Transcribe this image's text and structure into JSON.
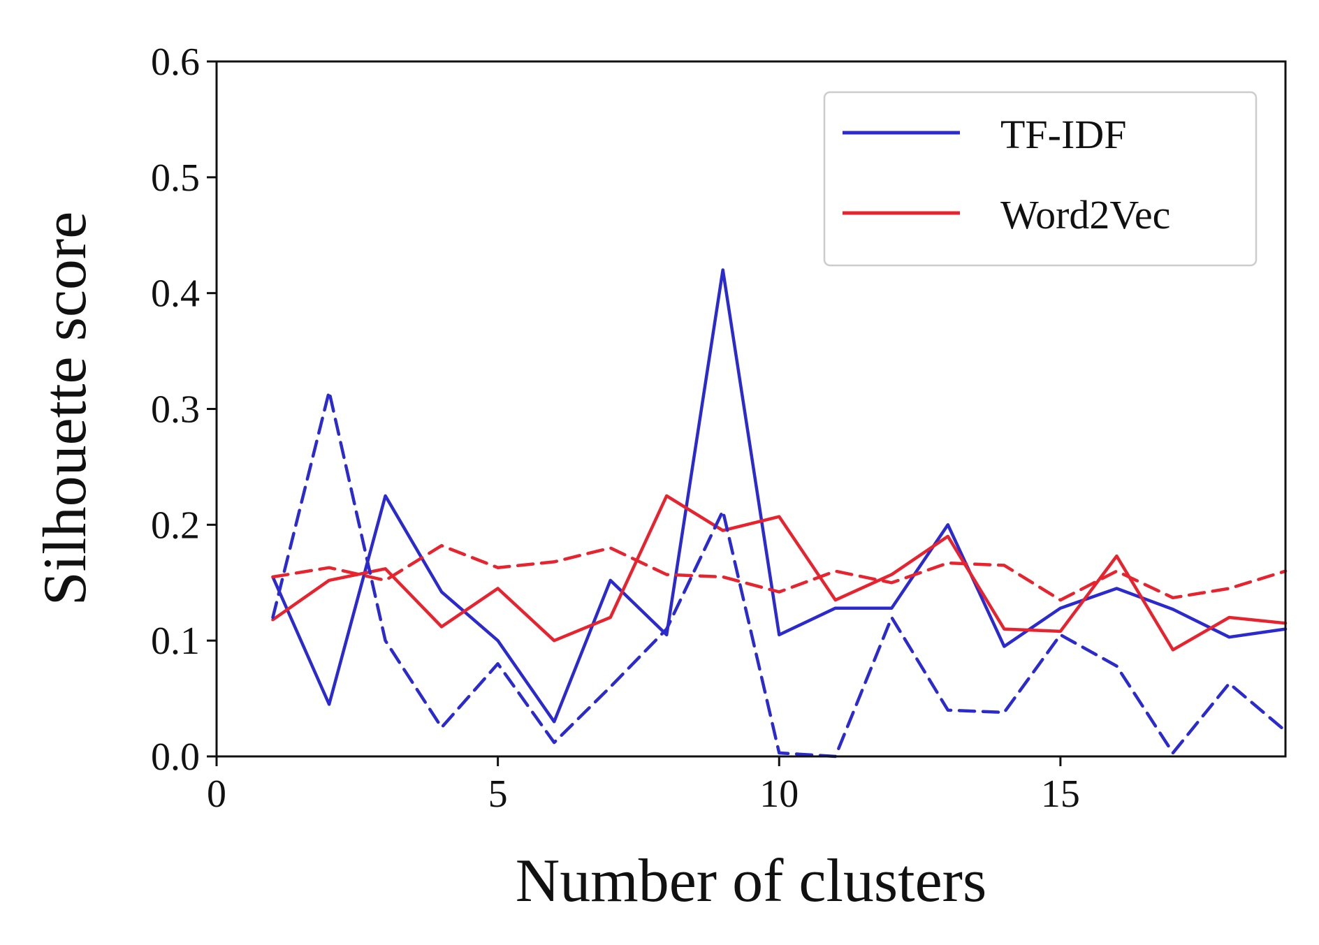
{
  "chart_data": {
    "type": "line",
    "title": "",
    "xlabel": "Number of clusters",
    "ylabel": "Silhouette score",
    "xlim": [
      0,
      19
    ],
    "ylim": [
      0.0,
      0.6
    ],
    "x_ticks": [
      "0",
      "5",
      "10",
      "15"
    ],
    "y_ticks": [
      "0.0",
      "0.1",
      "0.2",
      "0.3",
      "0.4",
      "0.5",
      "0.6"
    ],
    "grid": false,
    "legend_position": "top-right",
    "legend": [
      {
        "label": "TF-IDF",
        "color": "#2a2ad0"
      },
      {
        "label": "Word2Vec",
        "color": "#e8232e"
      }
    ],
    "x": [
      1,
      2,
      3,
      4,
      5,
      6,
      7,
      8,
      9,
      10,
      11,
      12,
      13,
      14,
      15,
      16,
      17,
      18,
      19
    ],
    "series": [
      {
        "legend_index": 0,
        "color": "#2a2ad0",
        "style": "solid",
        "values": [
          0.155,
          0.045,
          0.225,
          0.142,
          0.1,
          0.03,
          0.152,
          0.105,
          0.42,
          0.105,
          0.128,
          0.128,
          0.2,
          0.095,
          0.128,
          0.145,
          0.127,
          0.103,
          0.11
        ]
      },
      {
        "legend_index": 1,
        "color": "#e8232e",
        "style": "solid",
        "values": [
          0.118,
          0.152,
          0.162,
          0.112,
          0.145,
          0.1,
          0.12,
          0.225,
          0.195,
          0.207,
          0.135,
          0.157,
          0.19,
          0.11,
          0.108,
          0.173,
          0.092,
          0.12,
          0.115
        ]
      },
      {
        "legend_index": 0,
        "color": "#2a2ad0",
        "style": "dashed",
        "values": [
          0.12,
          0.315,
          0.1,
          0.025,
          0.08,
          0.012,
          0.06,
          0.11,
          0.212,
          0.003,
          0.0,
          0.12,
          0.04,
          0.038,
          0.105,
          0.078,
          0.003,
          0.063,
          0.022
        ]
      },
      {
        "legend_index": 1,
        "color": "#e8232e",
        "style": "dashed",
        "values": [
          0.155,
          0.163,
          0.152,
          0.182,
          0.163,
          0.168,
          0.18,
          0.157,
          0.155,
          0.142,
          0.16,
          0.15,
          0.167,
          0.165,
          0.135,
          0.16,
          0.137,
          0.145,
          0.16
        ]
      }
    ]
  }
}
